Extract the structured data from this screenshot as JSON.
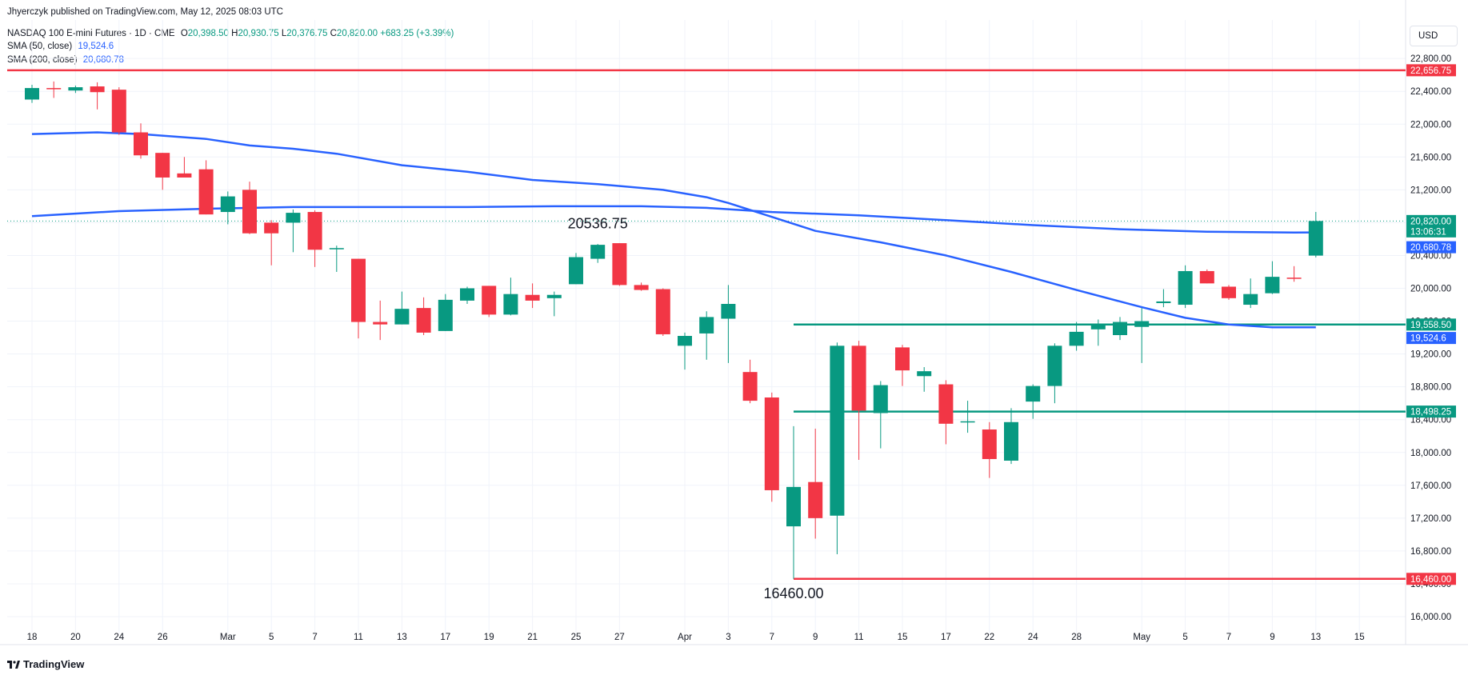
{
  "publisher": "Jhyerczyk published on TradingView.com, May 12, 2025 08:03 UTC",
  "legend": {
    "symbol": "NASDAQ 100 E-mini Futures · 1D · CME",
    "o_label": "O",
    "o_value": "20,398.50",
    "h_label": "H",
    "h_value": "20,930.75",
    "l_label": "L",
    "l_value": "20,376.75",
    "c_label": "C",
    "c_value": "20,820.00",
    "change": "+683.25 (+3.39%)",
    "sma50_label": "SMA (50, close)",
    "sma50_value": "19,524.6",
    "sma200_label": "SMA (200, close)",
    "sma200_value": "20,680.78"
  },
  "currency": "USD",
  "footer": {
    "logo_text": "TradingView"
  },
  "colors": {
    "up": "#089981",
    "down": "#f23645",
    "sma": "#2962ff",
    "grid": "#f0f3fa",
    "axis_text": "#131722"
  },
  "chart_data": {
    "type": "candlestick",
    "y_range": [
      15800,
      23000
    ],
    "y_ticks": [
      16000,
      16400,
      16800,
      17200,
      17600,
      18000,
      18400,
      18800,
      19200,
      19600,
      20000,
      20400,
      20800,
      21200,
      21600,
      22000,
      22400,
      22800
    ],
    "y_tick_labels": [
      "16,000.00",
      "16,400.00",
      "16,800.00",
      "17,200.00",
      "17,600.00",
      "18,000.00",
      "18,400.00",
      "18,800.00",
      "19,200.00",
      "19,600.00",
      "20,000.00",
      "20,400.00",
      "20,800.00",
      "21,200.00",
      "21,600.00",
      "22,000.00",
      "22,400.00",
      "22,800.00"
    ],
    "x_ticks": [
      {
        "label": "18",
        "bar": 0
      },
      {
        "label": "20",
        "bar": 2
      },
      {
        "label": "24",
        "bar": 4
      },
      {
        "label": "26",
        "bar": 6
      },
      {
        "label": "Mar",
        "bar": 9
      },
      {
        "label": "5",
        "bar": 11
      },
      {
        "label": "7",
        "bar": 13
      },
      {
        "label": "11",
        "bar": 15
      },
      {
        "label": "13",
        "bar": 17
      },
      {
        "label": "17",
        "bar": 19
      },
      {
        "label": "19",
        "bar": 21
      },
      {
        "label": "21",
        "bar": 23
      },
      {
        "label": "25",
        "bar": 25
      },
      {
        "label": "27",
        "bar": 27
      },
      {
        "label": "Apr",
        "bar": 30
      },
      {
        "label": "3",
        "bar": 32
      },
      {
        "label": "7",
        "bar": 34
      },
      {
        "label": "9",
        "bar": 36
      },
      {
        "label": "11",
        "bar": 38
      },
      {
        "label": "15",
        "bar": 40
      },
      {
        "label": "17",
        "bar": 42
      },
      {
        "label": "22",
        "bar": 44
      },
      {
        "label": "24",
        "bar": 46
      },
      {
        "label": "28",
        "bar": 48
      },
      {
        "label": "May",
        "bar": 51
      },
      {
        "label": "5",
        "bar": 53
      },
      {
        "label": "7",
        "bar": 55
      },
      {
        "label": "9",
        "bar": 57
      },
      {
        "label": "13",
        "bar": 59
      },
      {
        "label": "15",
        "bar": 61
      }
    ],
    "candles": [
      {
        "o": 22300,
        "h": 22480,
        "l": 22260,
        "c": 22440
      },
      {
        "o": 22440,
        "h": 22520,
        "l": 22320,
        "c": 22430
      },
      {
        "o": 22410,
        "h": 22470,
        "l": 22380,
        "c": 22450
      },
      {
        "o": 22460,
        "h": 22510,
        "l": 22180,
        "c": 22390
      },
      {
        "o": 22420,
        "h": 22450,
        "l": 21870,
        "c": 21900
      },
      {
        "o": 21900,
        "h": 22010,
        "l": 21580,
        "c": 21620
      },
      {
        "o": 21650,
        "h": 21650,
        "l": 21200,
        "c": 21350
      },
      {
        "o": 21400,
        "h": 21600,
        "l": 21360,
        "c": 21350
      },
      {
        "o": 21450,
        "h": 21560,
        "l": 20900,
        "c": 20900
      },
      {
        "o": 20930,
        "h": 21180,
        "l": 20780,
        "c": 21120
      },
      {
        "o": 21200,
        "h": 21300,
        "l": 20660,
        "c": 20670
      },
      {
        "o": 20800,
        "h": 20830,
        "l": 20280,
        "c": 20670
      },
      {
        "o": 20800,
        "h": 20960,
        "l": 20440,
        "c": 20920
      },
      {
        "o": 20930,
        "h": 20950,
        "l": 20260,
        "c": 20470
      },
      {
        "o": 20480,
        "h": 20520,
        "l": 20200,
        "c": 20490
      },
      {
        "o": 20360,
        "h": 20360,
        "l": 19390,
        "c": 19590
      },
      {
        "o": 19590,
        "h": 19850,
        "l": 19370,
        "c": 19560
      },
      {
        "o": 19560,
        "h": 19960,
        "l": 19560,
        "c": 19750
      },
      {
        "o": 19760,
        "h": 19890,
        "l": 19430,
        "c": 19460
      },
      {
        "o": 19480,
        "h": 19930,
        "l": 19480,
        "c": 19860
      },
      {
        "o": 19850,
        "h": 20020,
        "l": 19810,
        "c": 20000
      },
      {
        "o": 20030,
        "h": 20030,
        "l": 19650,
        "c": 19680
      },
      {
        "o": 19680,
        "h": 20130,
        "l": 19670,
        "c": 19930
      },
      {
        "o": 19920,
        "h": 20060,
        "l": 19760,
        "c": 19850
      },
      {
        "o": 19880,
        "h": 19960,
        "l": 19660,
        "c": 19920
      },
      {
        "o": 20050,
        "h": 20430,
        "l": 20050,
        "c": 20380
      },
      {
        "o": 20360,
        "h": 20540,
        "l": 20310,
        "c": 20530
      },
      {
        "o": 20550,
        "h": 20550,
        "l": 20030,
        "c": 20040
      },
      {
        "o": 20040,
        "h": 20070,
        "l": 19970,
        "c": 19980
      },
      {
        "o": 19990,
        "h": 20000,
        "l": 19420,
        "c": 19440
      },
      {
        "o": 19300,
        "h": 19460,
        "l": 19010,
        "c": 19420
      },
      {
        "o": 19450,
        "h": 19720,
        "l": 19130,
        "c": 19650
      },
      {
        "o": 19630,
        "h": 20040,
        "l": 19090,
        "c": 19810
      },
      {
        "o": 18980,
        "h": 19130,
        "l": 18600,
        "c": 18630
      },
      {
        "o": 18670,
        "h": 18730,
        "l": 17400,
        "c": 17540
      },
      {
        "o": 17100,
        "h": 18320,
        "l": 16460,
        "c": 17580
      },
      {
        "o": 17640,
        "h": 18290,
        "l": 16950,
        "c": 17200
      },
      {
        "o": 17230,
        "h": 19340,
        "l": 16760,
        "c": 19300
      },
      {
        "o": 19300,
        "h": 19360,
        "l": 17910,
        "c": 18510
      },
      {
        "o": 18480,
        "h": 18870,
        "l": 18050,
        "c": 18820
      },
      {
        "o": 19280,
        "h": 19310,
        "l": 18810,
        "c": 19000
      },
      {
        "o": 18930,
        "h": 19040,
        "l": 18740,
        "c": 18990
      },
      {
        "o": 18830,
        "h": 18880,
        "l": 18100,
        "c": 18350
      },
      {
        "o": 18370,
        "h": 18630,
        "l": 18240,
        "c": 18380
      },
      {
        "o": 18280,
        "h": 18370,
        "l": 17690,
        "c": 17920
      },
      {
        "o": 17900,
        "h": 18540,
        "l": 17860,
        "c": 18370
      },
      {
        "o": 18620,
        "h": 18830,
        "l": 18410,
        "c": 18810
      },
      {
        "o": 18810,
        "h": 19330,
        "l": 18600,
        "c": 19300
      },
      {
        "o": 19300,
        "h": 19590,
        "l": 19240,
        "c": 19470
      },
      {
        "o": 19500,
        "h": 19620,
        "l": 19300,
        "c": 19550
      },
      {
        "o": 19430,
        "h": 19650,
        "l": 19370,
        "c": 19590
      },
      {
        "o": 19530,
        "h": 19760,
        "l": 19090,
        "c": 19600
      },
      {
        "o": 19820,
        "h": 19990,
        "l": 19770,
        "c": 19840
      },
      {
        "o": 19800,
        "h": 20280,
        "l": 19760,
        "c": 20210
      },
      {
        "o": 20210,
        "h": 20230,
        "l": 20060,
        "c": 20060
      },
      {
        "o": 20020,
        "h": 20040,
        "l": 19860,
        "c": 19880
      },
      {
        "o": 19800,
        "h": 20120,
        "l": 19760,
        "c": 19930
      },
      {
        "o": 19940,
        "h": 20330,
        "l": 19930,
        "c": 20140
      },
      {
        "o": 20130,
        "h": 20270,
        "l": 20080,
        "c": 20120
      },
      {
        "o": 20398.5,
        "h": 20930.75,
        "l": 20376.75,
        "c": 20820
      }
    ],
    "sma50": [
      [
        0,
        21880
      ],
      [
        3,
        21900
      ],
      [
        5,
        21880
      ],
      [
        8,
        21820
      ],
      [
        10,
        21740
      ],
      [
        12,
        21700
      ],
      [
        14,
        21640
      ],
      [
        17,
        21500
      ],
      [
        20,
        21420
      ],
      [
        23,
        21320
      ],
      [
        26,
        21270
      ],
      [
        29,
        21200
      ],
      [
        31,
        21110
      ],
      [
        32,
        21040
      ],
      [
        34,
        20870
      ],
      [
        36,
        20700
      ],
      [
        39,
        20560
      ],
      [
        42,
        20400
      ],
      [
        45,
        20200
      ],
      [
        48,
        19980
      ],
      [
        51,
        19770
      ],
      [
        53,
        19640
      ],
      [
        55,
        19560
      ],
      [
        57,
        19525
      ],
      [
        59,
        19524.6
      ]
    ],
    "sma200": [
      [
        0,
        20880
      ],
      [
        4,
        20940
      ],
      [
        8,
        20970
      ],
      [
        12,
        20990
      ],
      [
        16,
        20990
      ],
      [
        20,
        20990
      ],
      [
        24,
        21000
      ],
      [
        28,
        21000
      ],
      [
        31,
        20980
      ],
      [
        34,
        20930
      ],
      [
        38,
        20890
      ],
      [
        42,
        20830
      ],
      [
        46,
        20770
      ],
      [
        50,
        20720
      ],
      [
        54,
        20690
      ],
      [
        58,
        20680
      ],
      [
        59,
        20680.78
      ]
    ],
    "levels": [
      {
        "value": 22656.75,
        "label": "22,656.75",
        "color": "#f23645",
        "from_bar": -1
      },
      {
        "value": 19558.5,
        "label": "19,558.50",
        "color": "#089981",
        "from_bar": 35
      },
      {
        "value": 18498.25,
        "label": "18,498.25",
        "color": "#089981",
        "from_bar": 35
      },
      {
        "value": 16460.0,
        "label": "16,460.00",
        "color": "#f23645",
        "from_bar": 35
      }
    ],
    "price_tags": [
      {
        "value": 20820.0,
        "label": "20,820.00",
        "sublabel": "13:06:31",
        "color": "#089981"
      },
      {
        "value": 20680.78,
        "label": "20,680.78",
        "color": "#2962ff"
      },
      {
        "value": 19524.6,
        "label": "19,524.6",
        "color": "#2962ff"
      }
    ],
    "annotations": [
      {
        "text": "20536.75",
        "bar": 26,
        "value": 20536.75,
        "position": "above"
      },
      {
        "text": "16460.00",
        "bar": 35,
        "value": 16460.0,
        "position": "below"
      }
    ],
    "last_price_line": 20820.0,
    "grid": true
  }
}
